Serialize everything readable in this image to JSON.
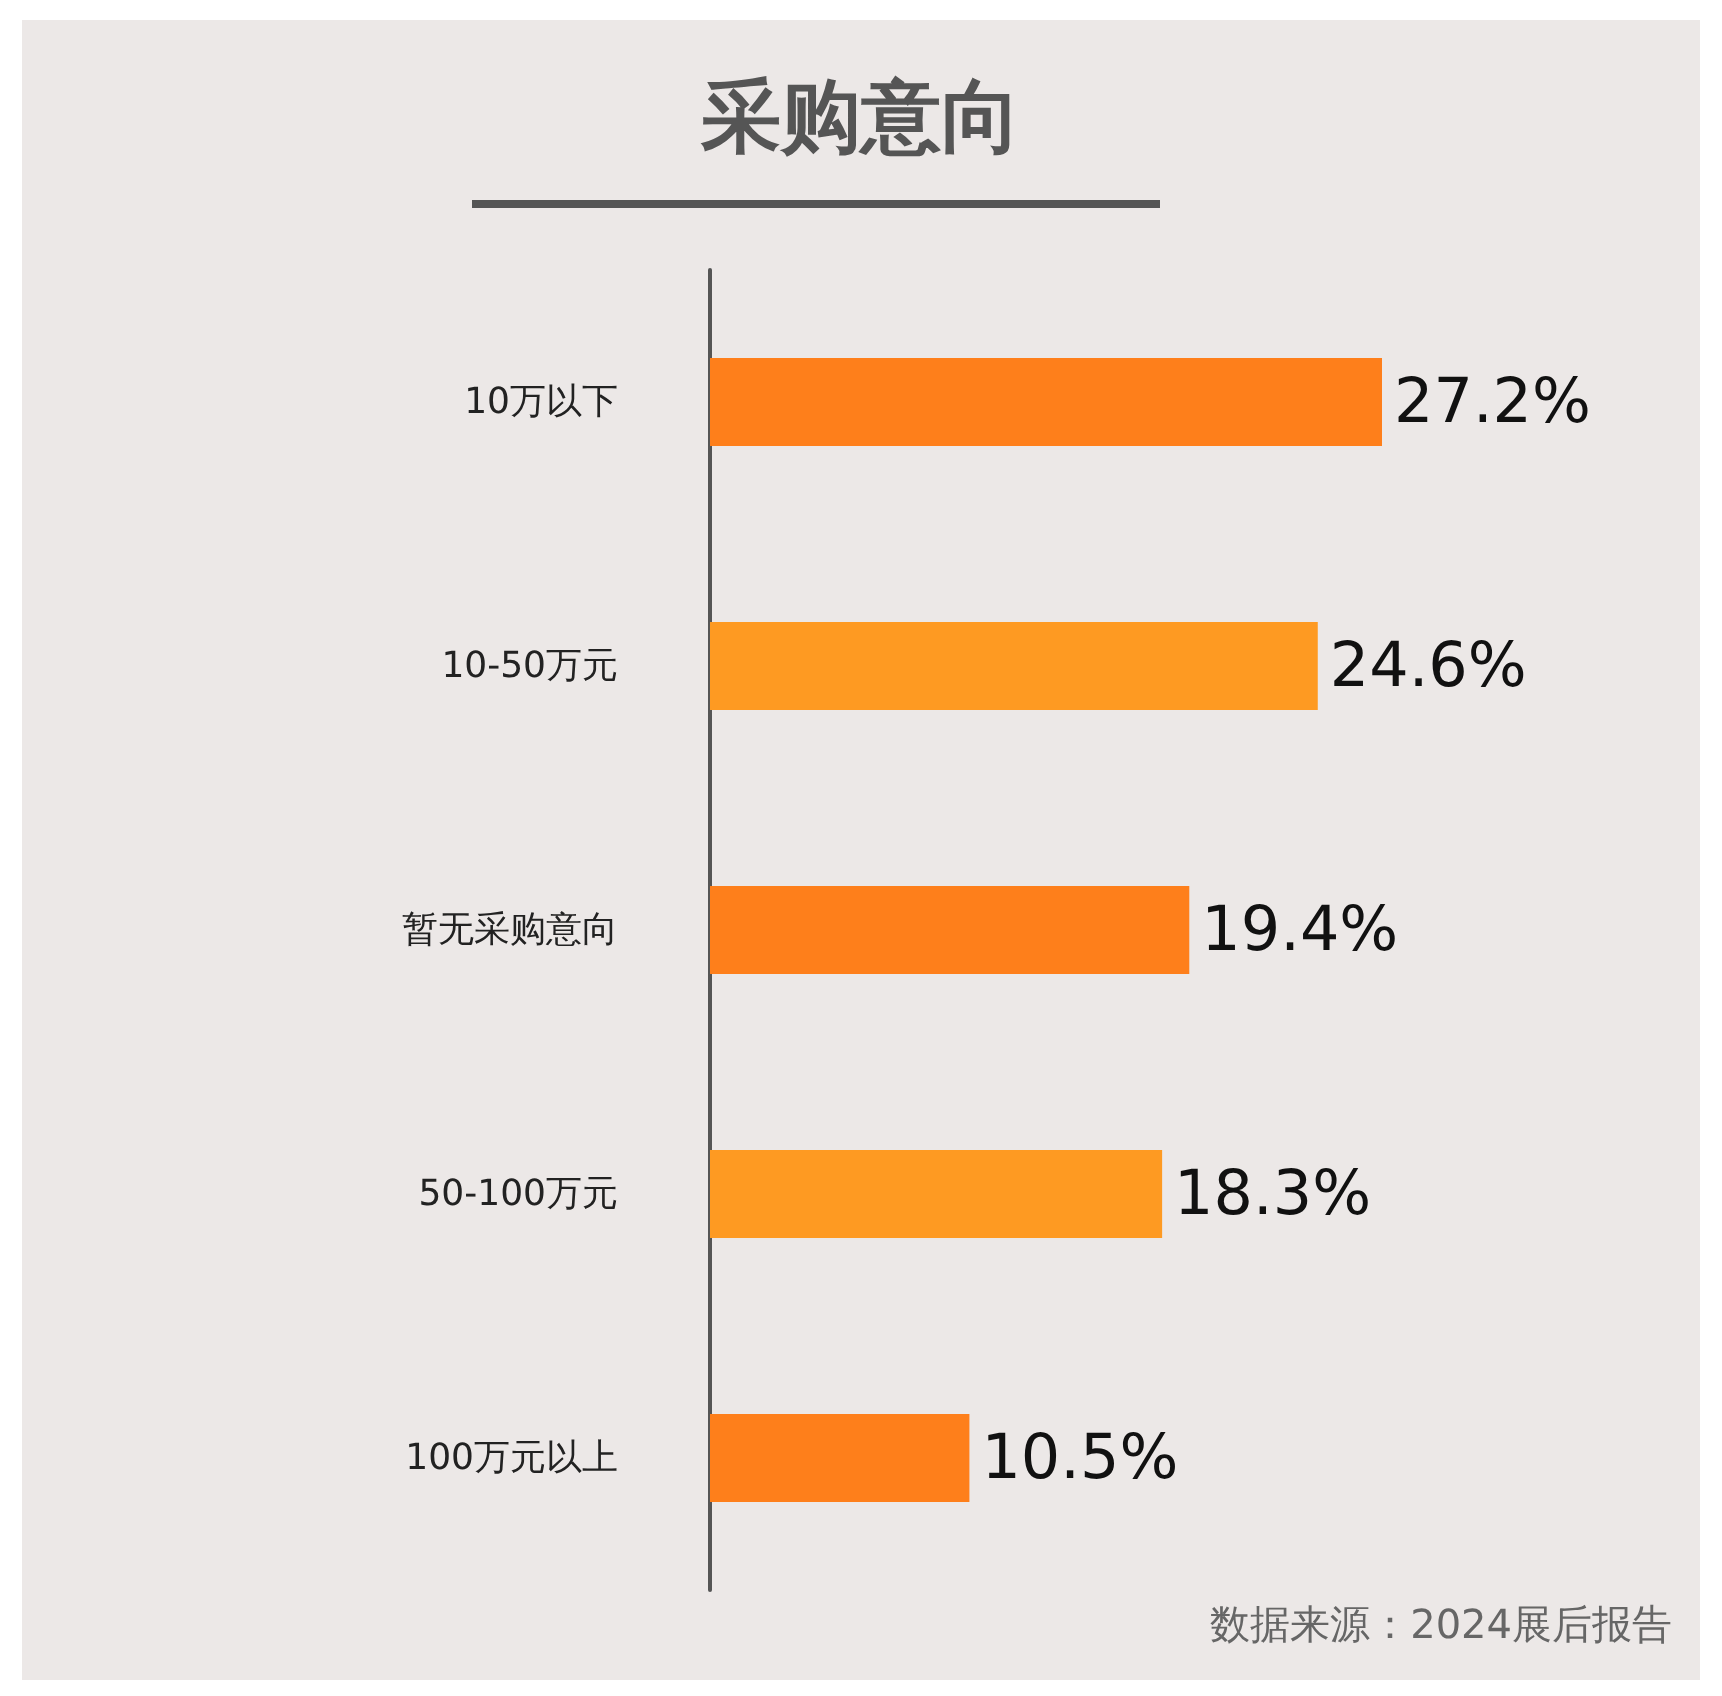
{
  "chart_data": {
    "type": "bar",
    "orientation": "horizontal",
    "title": "采购意向",
    "categories": [
      "10万以下",
      "10-50万元",
      "暂无采购意向",
      "50-100万元",
      "100万元以上"
    ],
    "values": [
      27.2,
      24.6,
      19.4,
      18.3,
      10.5
    ],
    "colors": [
      "#fe7f1b",
      "#fe9a22",
      "#fe7f1b",
      "#fe9a22",
      "#fe7f1b"
    ],
    "value_labels": [
      "27.2%",
      "24.6%",
      "19.4%",
      "18.3%",
      "10.5%"
    ],
    "annotations": [
      "数据来源：2024展后报告"
    ],
    "tick_labels": "y"
  }
}
